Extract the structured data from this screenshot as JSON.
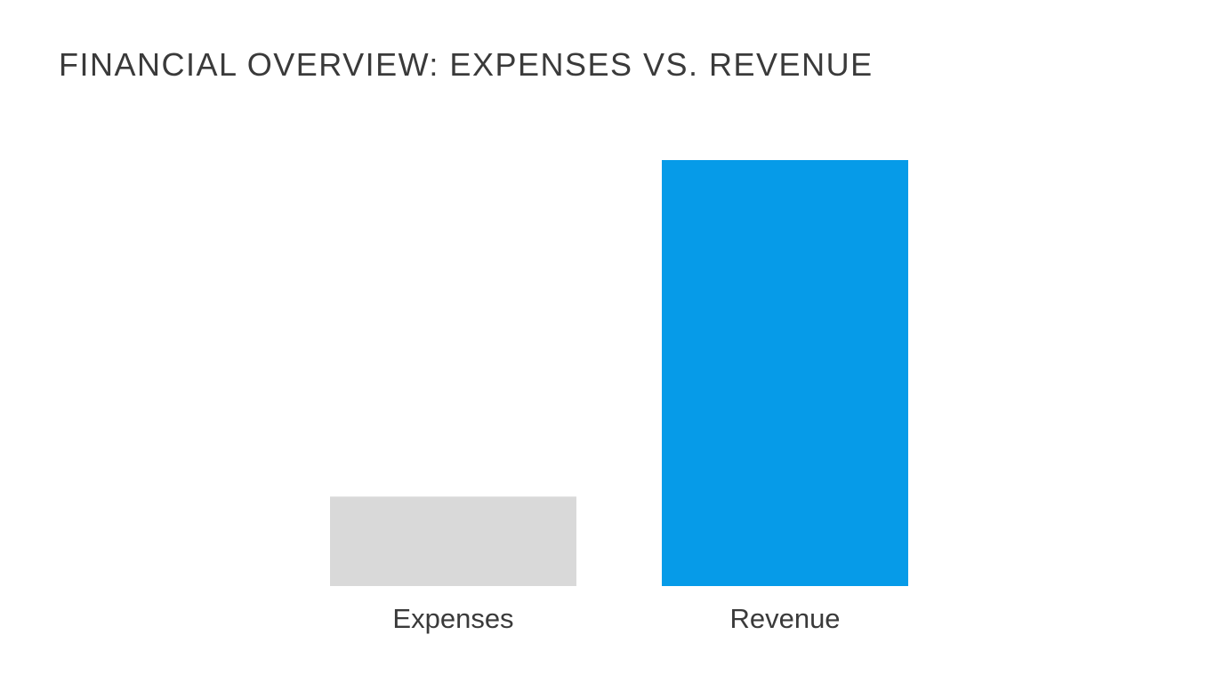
{
  "chart_data": {
    "type": "bar",
    "title": "FINANCIAL OVERVIEW: EXPENSES VS. REVENUE",
    "categories": [
      "Expenses",
      "Revenue"
    ],
    "values": [
      21,
      100
    ],
    "colors": [
      "#d9d9d9",
      "#069be8"
    ],
    "ylim": [
      0,
      100
    ],
    "grid": false,
    "legend": "none",
    "xlabel": "",
    "ylabel": ""
  }
}
